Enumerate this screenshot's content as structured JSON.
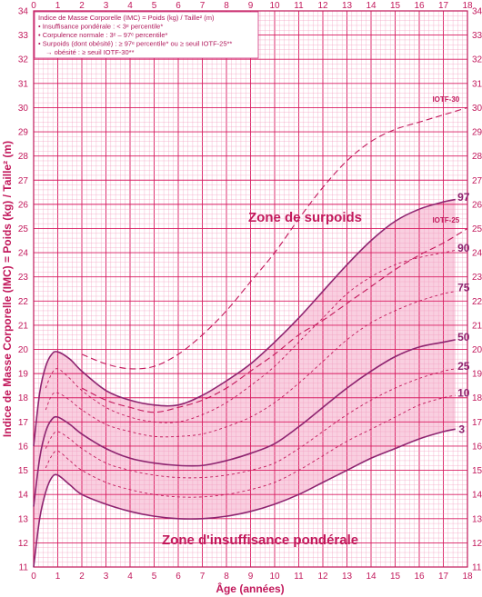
{
  "chart_data": {
    "type": "line",
    "xlabel": "Âge (années)",
    "ylabel": "Indice de Masse Corporelle (IMC) = Poids (kg) / Taille² (m)",
    "xlim": [
      0,
      18
    ],
    "ylim": [
      11,
      34
    ],
    "x_ticks": [
      0,
      1,
      2,
      3,
      4,
      5,
      6,
      7,
      8,
      9,
      10,
      11,
      12,
      13,
      14,
      15,
      16,
      17,
      18
    ],
    "y_ticks": [
      11,
      12,
      13,
      14,
      15,
      16,
      17,
      18,
      19,
      20,
      21,
      22,
      23,
      24,
      25,
      26,
      27,
      28,
      29,
      30,
      31,
      32,
      33,
      34
    ],
    "grid": true,
    "legend": {
      "title": "Indice de Masse Corporelle (IMC) = Poids (kg) / Taille² (m)",
      "lines": [
        "• Insuffisance pondérale : < 3ᵉ percentile*",
        "• Corpulence normale : 3ᵉ – 97ᵉ percentile*",
        "• Surpoids (dont obésité) : ≥ 97ᵉ percentile* ou ≥ seuil IOTF-25**",
        "→ obésité : ≥ seuil IOTF-30**"
      ]
    },
    "annotations": [
      "Zone de surpoids",
      "Zone d'insuffisance pondérale"
    ],
    "series": [
      {
        "name": "3",
        "style": "solid",
        "color": "#8e2470",
        "x": [
          0,
          0.25,
          0.5,
          0.75,
          1,
          1.5,
          2,
          3,
          4,
          5,
          6,
          7,
          8,
          9,
          10,
          11,
          12,
          13,
          14,
          15,
          16,
          17,
          17.5
        ],
        "y": [
          11.0,
          13.0,
          14.1,
          14.7,
          14.8,
          14.4,
          14.0,
          13.6,
          13.3,
          13.1,
          13.0,
          13.0,
          13.1,
          13.3,
          13.6,
          14.0,
          14.5,
          15.0,
          15.5,
          15.9,
          16.3,
          16.6,
          16.7
        ]
      },
      {
        "name": "10",
        "style": "dashed",
        "color": "#c2185b",
        "x": [
          0.5,
          0.75,
          1,
          1.5,
          2,
          3,
          4,
          5,
          6,
          7,
          8,
          9,
          10,
          11,
          12,
          13,
          14,
          15,
          16,
          17,
          17.5
        ],
        "y": [
          15.1,
          15.6,
          15.8,
          15.4,
          15.0,
          14.5,
          14.2,
          14.0,
          13.9,
          13.9,
          14.0,
          14.2,
          14.5,
          15.0,
          15.6,
          16.2,
          16.7,
          17.2,
          17.7,
          18.0,
          18.1
        ]
      },
      {
        "name": "25",
        "style": "dashed",
        "color": "#c2185b",
        "x": [
          0.5,
          0.75,
          1,
          1.5,
          2,
          3,
          4,
          5,
          6,
          7,
          8,
          9,
          10,
          11,
          12,
          13,
          14,
          15,
          16,
          17,
          17.5
        ],
        "y": [
          15.9,
          16.4,
          16.6,
          16.3,
          15.9,
          15.3,
          15.0,
          14.8,
          14.7,
          14.7,
          14.8,
          15.0,
          15.3,
          15.9,
          16.6,
          17.3,
          17.9,
          18.4,
          18.8,
          19.1,
          19.2
        ]
      },
      {
        "name": "50",
        "style": "solid",
        "color": "#8e2470",
        "x": [
          0,
          0.25,
          0.5,
          0.75,
          1,
          1.5,
          2,
          3,
          4,
          5,
          6,
          7,
          8,
          9,
          10,
          11,
          12,
          13,
          14,
          15,
          16,
          17,
          17.5
        ],
        "y": [
          13.5,
          15.5,
          16.6,
          17.1,
          17.2,
          16.9,
          16.5,
          15.9,
          15.5,
          15.3,
          15.2,
          15.2,
          15.4,
          15.7,
          16.1,
          16.8,
          17.6,
          18.4,
          19.1,
          19.7,
          20.1,
          20.3,
          20.4
        ]
      },
      {
        "name": "75",
        "style": "dashed",
        "color": "#c2185b",
        "x": [
          0.5,
          0.75,
          1,
          1.5,
          2,
          3,
          4,
          5,
          6,
          7,
          8,
          9,
          10,
          11,
          12,
          13,
          14,
          15,
          16,
          17,
          17.5
        ],
        "y": [
          17.5,
          18.1,
          18.2,
          17.9,
          17.5,
          16.9,
          16.6,
          16.4,
          16.4,
          16.5,
          16.8,
          17.2,
          17.8,
          18.6,
          19.5,
          20.4,
          21.1,
          21.6,
          22.0,
          22.3,
          22.4
        ]
      },
      {
        "name": "90",
        "style": "dashed",
        "color": "#c2185b",
        "x": [
          0.5,
          0.75,
          1,
          1.5,
          2,
          3,
          4,
          5,
          6,
          7,
          8,
          9,
          10,
          11,
          12,
          13,
          14,
          15,
          16,
          17,
          17.5
        ],
        "y": [
          18.4,
          19.0,
          19.2,
          18.8,
          18.3,
          17.6,
          17.2,
          17.0,
          17.0,
          17.3,
          17.8,
          18.5,
          19.3,
          20.3,
          21.3,
          22.3,
          23.0,
          23.5,
          23.8,
          24.0,
          24.1
        ]
      },
      {
        "name": "97",
        "style": "solid",
        "color": "#8e2470",
        "x": [
          0,
          0.25,
          0.5,
          0.75,
          1,
          1.5,
          2,
          3,
          4,
          5,
          6,
          7,
          8,
          9,
          10,
          11,
          12,
          13,
          14,
          15,
          16,
          17,
          17.5
        ],
        "y": [
          16.0,
          18.2,
          19.3,
          19.8,
          19.9,
          19.6,
          19.1,
          18.3,
          17.9,
          17.7,
          17.7,
          18.1,
          18.7,
          19.4,
          20.3,
          21.3,
          22.4,
          23.5,
          24.5,
          25.3,
          25.8,
          26.1,
          26.2
        ]
      },
      {
        "name": "IOTF-25",
        "style": "dashed",
        "color": "#c2185b",
        "x": [
          2,
          3,
          4,
          5,
          6,
          7,
          8,
          9,
          10,
          11,
          12,
          13,
          14,
          15,
          16,
          17,
          18
        ],
        "y": [
          18.4,
          17.9,
          17.6,
          17.4,
          17.6,
          17.9,
          18.4,
          19.1,
          19.8,
          20.6,
          21.2,
          21.9,
          22.6,
          23.3,
          23.9,
          24.4,
          25.0
        ]
      },
      {
        "name": "IOTF-30",
        "style": "dashed",
        "color": "#c2185b",
        "x": [
          2,
          3,
          4,
          5,
          6,
          7,
          8,
          9,
          10,
          11,
          12,
          13,
          14,
          15,
          16,
          17,
          18
        ],
        "y": [
          19.8,
          19.4,
          19.2,
          19.3,
          19.8,
          20.6,
          21.6,
          22.8,
          24.0,
          25.4,
          26.7,
          27.8,
          28.6,
          29.1,
          29.4,
          29.7,
          30.0
        ]
      }
    ]
  }
}
